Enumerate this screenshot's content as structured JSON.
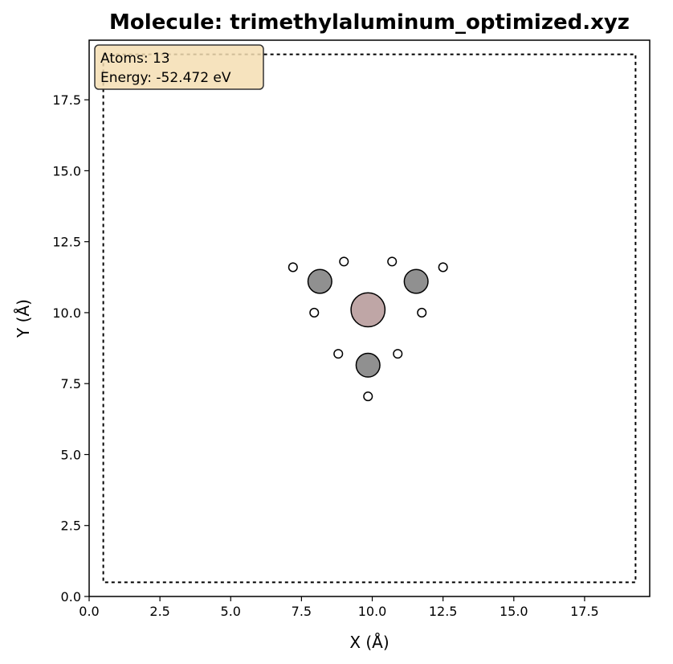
{
  "chart_data": {
    "type": "scatter",
    "title": "Molecule: trimethylaluminum_optimized.xyz",
    "xlabel": "X (Å)",
    "ylabel": "Y (Å)",
    "xlim": [
      0,
      19.8
    ],
    "ylim": [
      0,
      19.6
    ],
    "xticks": [
      0.0,
      2.5,
      5.0,
      7.5,
      10.0,
      12.5,
      15.0,
      17.5
    ],
    "yticks": [
      0.0,
      2.5,
      5.0,
      7.5,
      10.0,
      12.5,
      15.0,
      17.5
    ],
    "cell_box": {
      "xmin": 0.5,
      "xmax": 19.3,
      "ymin": 0.5,
      "ymax": 19.1,
      "style": "dotted"
    },
    "info_box": {
      "line1": "Atoms: 13",
      "line2": "Energy: -52.472 eV",
      "background": "#f5deb3",
      "placement": "top-left"
    },
    "element_colors": {
      "Al": "#bfa6a6",
      "C": "#909090",
      "H": "#ffffff"
    },
    "element_radius_angstrom": {
      "Al": 0.6,
      "C": 0.42,
      "H": 0.15
    },
    "atoms": [
      {
        "element": "Al",
        "x": 9.85,
        "y": 10.1
      },
      {
        "element": "C",
        "x": 8.15,
        "y": 11.1
      },
      {
        "element": "C",
        "x": 11.55,
        "y": 11.1
      },
      {
        "element": "C",
        "x": 9.85,
        "y": 8.15
      },
      {
        "element": "H",
        "x": 7.2,
        "y": 11.6
      },
      {
        "element": "H",
        "x": 9.0,
        "y": 11.8
      },
      {
        "element": "H",
        "x": 7.95,
        "y": 10.0
      },
      {
        "element": "H",
        "x": 10.7,
        "y": 11.8
      },
      {
        "element": "H",
        "x": 12.5,
        "y": 11.6
      },
      {
        "element": "H",
        "x": 11.75,
        "y": 10.0
      },
      {
        "element": "H",
        "x": 8.8,
        "y": 8.55
      },
      {
        "element": "H",
        "x": 10.9,
        "y": 8.55
      },
      {
        "element": "H",
        "x": 9.85,
        "y": 7.05
      }
    ]
  }
}
